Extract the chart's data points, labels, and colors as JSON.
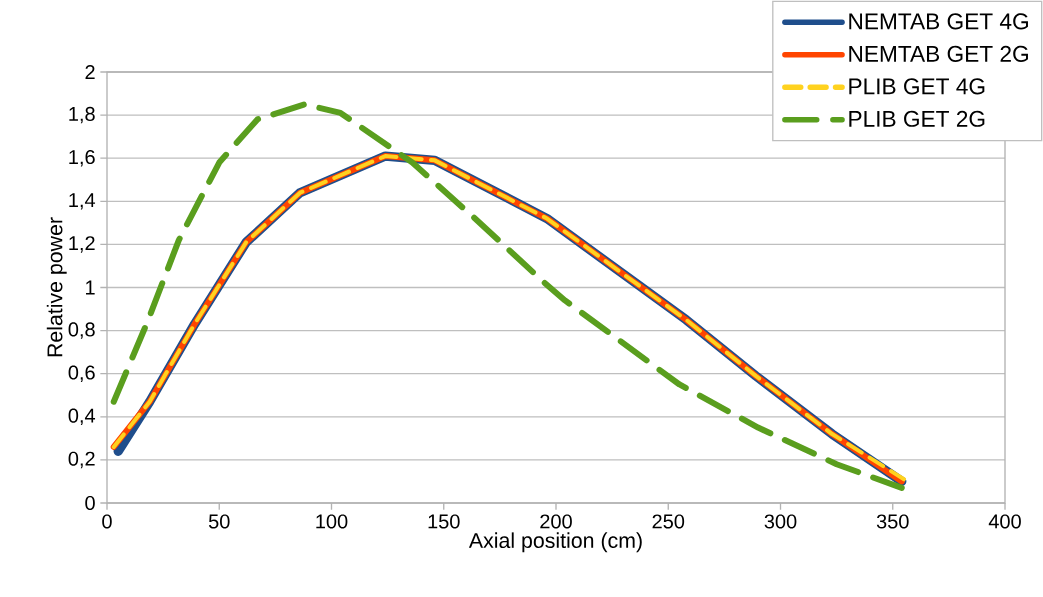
{
  "chart_data": {
    "type": "line",
    "xlabel": "Axial position (cm)",
    "ylabel": "Relative power",
    "xlim": [
      0,
      400
    ],
    "xticks": [
      0,
      50,
      100,
      150,
      200,
      250,
      300,
      350,
      400
    ],
    "ylim": [
      0,
      2
    ],
    "yticks": [
      0,
      {
        "value": 0.2,
        "label": "0,2"
      },
      {
        "value": 0.4,
        "label": "0,4"
      },
      {
        "value": 0.6,
        "label": "0,6"
      },
      {
        "value": 0.8,
        "label": "0,8"
      },
      1,
      {
        "value": 1.2,
        "label": "1,2"
      },
      {
        "value": 1.4,
        "label": "1,4"
      },
      {
        "value": 1.6,
        "label": "1,6"
      },
      {
        "value": 1.8,
        "label": "1,8"
      },
      2
    ],
    "grid": "y",
    "legend": "top right",
    "marker": "none",
    "series": [
      {
        "name": "NEMTAB GET 4G",
        "color": "#1f4e8c",
        "line_style": "solid",
        "x": [
          5,
          19,
          39,
          62,
          86,
          124,
          146,
          196,
          258,
          289,
          323,
          354
        ],
        "values": [
          0.24,
          0.47,
          0.83,
          1.21,
          1.44,
          1.61,
          1.59,
          1.32,
          0.85,
          0.59,
          0.32,
          0.1
        ]
      },
      {
        "name": "NEMTAB GET 2G",
        "color": "#ff4500",
        "line_style": "solid",
        "x": [
          3,
          19,
          39,
          62,
          86,
          124,
          146,
          196,
          258,
          289,
          323,
          354
        ],
        "values": [
          0.26,
          0.47,
          0.83,
          1.21,
          1.44,
          1.61,
          1.59,
          1.32,
          0.85,
          0.59,
          0.32,
          0.1
        ]
      },
      {
        "name": "PLIB GET 4G",
        "color": "#ffd21f",
        "line_style": "dashed",
        "x": [
          3,
          19,
          39,
          62,
          86,
          124,
          146,
          196,
          258,
          289,
          323,
          355
        ],
        "values": [
          0.26,
          0.47,
          0.83,
          1.21,
          1.44,
          1.61,
          1.59,
          1.32,
          0.85,
          0.59,
          0.32,
          0.11
        ]
      },
      {
        "name": "PLIB GET 2G",
        "color": "#5a9e1e",
        "line_style": "dashed",
        "x": [
          3,
          18,
          32,
          50,
          67,
          88,
          104,
          136,
          165,
          194,
          204,
          255,
          290,
          325,
          354
        ],
        "values": [
          0.47,
          0.84,
          1.22,
          1.58,
          1.78,
          1.85,
          1.81,
          1.58,
          1.31,
          1.03,
          0.94,
          0.55,
          0.35,
          0.18,
          0.07
        ]
      }
    ]
  }
}
